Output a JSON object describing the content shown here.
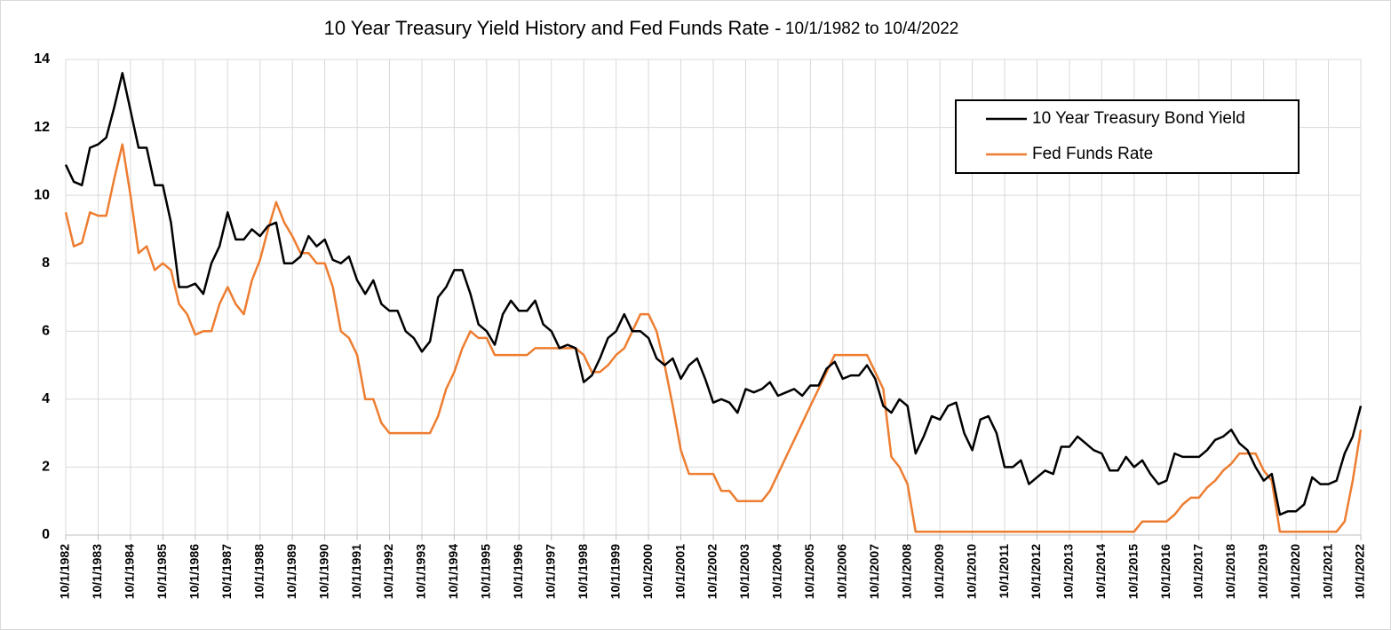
{
  "chart_data": {
    "type": "line",
    "title": "10 Year Treasury Yield History and Fed Funds Rate -",
    "subtitle": "10/1/1982 to 10/4/2022",
    "x": [
      "10/1/1982",
      "1/1/1983",
      "4/1/1983",
      "7/1/1983",
      "10/1/1983",
      "1/1/1984",
      "4/1/1984",
      "7/1/1984",
      "10/1/1984",
      "1/1/1985",
      "4/1/1985",
      "7/1/1985",
      "10/1/1985",
      "1/1/1986",
      "4/1/1986",
      "7/1/1986",
      "10/1/1986",
      "1/1/1987",
      "4/1/1987",
      "7/1/1987",
      "10/1/1987",
      "1/1/1988",
      "4/1/1988",
      "7/1/1988",
      "10/1/1988",
      "1/1/1989",
      "4/1/1989",
      "7/1/1989",
      "10/1/1989",
      "1/1/1990",
      "4/1/1990",
      "7/1/1990",
      "10/1/1990",
      "1/1/1991",
      "4/1/1991",
      "7/1/1991",
      "10/1/1991",
      "1/1/1992",
      "4/1/1992",
      "7/1/1992",
      "10/1/1992",
      "1/1/1993",
      "4/1/1993",
      "7/1/1993",
      "10/1/1993",
      "1/1/1994",
      "4/1/1994",
      "7/1/1994",
      "10/1/1994",
      "1/1/1995",
      "4/1/1995",
      "7/1/1995",
      "10/1/1995",
      "1/1/1996",
      "4/1/1996",
      "7/1/1996",
      "10/1/1996",
      "1/1/1997",
      "4/1/1997",
      "7/1/1997",
      "10/1/1997",
      "1/1/1998",
      "4/1/1998",
      "7/1/1998",
      "10/1/1998",
      "1/1/1999",
      "4/1/1999",
      "7/1/1999",
      "10/1/1999",
      "1/1/2000",
      "4/1/2000",
      "7/1/2000",
      "10/1/2000",
      "1/1/2001",
      "4/1/2001",
      "7/1/2001",
      "10/1/2001",
      "1/1/2002",
      "4/1/2002",
      "7/1/2002",
      "10/1/2002",
      "1/1/2003",
      "4/1/2003",
      "7/1/2003",
      "10/1/2003",
      "1/1/2004",
      "4/1/2004",
      "7/1/2004",
      "10/1/2004",
      "1/1/2005",
      "4/1/2005",
      "7/1/2005",
      "10/1/2005",
      "1/1/2006",
      "4/1/2006",
      "7/1/2006",
      "10/1/2006",
      "1/1/2007",
      "4/1/2007",
      "7/1/2007",
      "10/1/2007",
      "1/1/2008",
      "4/1/2008",
      "7/1/2008",
      "10/1/2008",
      "1/1/2009",
      "4/1/2009",
      "7/1/2009",
      "10/1/2009",
      "1/1/2010",
      "4/1/2010",
      "7/1/2010",
      "10/1/2010",
      "1/1/2011",
      "4/1/2011",
      "7/1/2011",
      "10/1/2011",
      "1/1/2012",
      "4/1/2012",
      "7/1/2012",
      "10/1/2012",
      "1/1/2013",
      "4/1/2013",
      "7/1/2013",
      "10/1/2013",
      "1/1/2014",
      "4/1/2014",
      "7/1/2014",
      "10/1/2014",
      "1/1/2015",
      "4/1/2015",
      "7/1/2015",
      "10/1/2015",
      "1/1/2016",
      "4/1/2016",
      "7/1/2016",
      "10/1/2016",
      "1/1/2017",
      "4/1/2017",
      "7/1/2017",
      "10/1/2017",
      "1/1/2018",
      "4/1/2018",
      "7/1/2018",
      "10/1/2018",
      "1/1/2019",
      "4/1/2019",
      "7/1/2019",
      "10/1/2019",
      "1/1/2020",
      "4/1/2020",
      "7/1/2020",
      "10/1/2020",
      "1/1/2021",
      "4/1/2021",
      "7/1/2021",
      "10/1/2021",
      "1/1/2022",
      "4/1/2022",
      "7/1/2022",
      "10/1/2022"
    ],
    "xticks": [
      "10/1/1982",
      "10/1/1983",
      "10/1/1984",
      "10/1/1985",
      "10/1/1986",
      "10/1/1987",
      "10/1/1988",
      "10/1/1989",
      "10/1/1990",
      "10/1/1991",
      "10/1/1992",
      "10/1/1993",
      "10/1/1994",
      "10/1/1995",
      "10/1/1996",
      "10/1/1997",
      "10/1/1998",
      "10/1/1999",
      "10/1/2000",
      "10/1/2001",
      "10/1/2002",
      "10/1/2003",
      "10/1/2004",
      "10/1/2005",
      "10/1/2006",
      "10/1/2007",
      "10/1/2008",
      "10/1/2009",
      "10/1/2010",
      "10/1/2011",
      "10/1/2012",
      "10/1/2013",
      "10/1/2014",
      "10/1/2015",
      "10/1/2016",
      "10/1/2017",
      "10/1/2018",
      "10/1/2019",
      "10/1/2020",
      "10/1/2021",
      "10/1/2022"
    ],
    "series": [
      {
        "name": "10 Year Treasury Bond Yield",
        "color": "#000000",
        "values": [
          10.9,
          10.4,
          10.3,
          11.4,
          11.5,
          11.7,
          12.6,
          13.6,
          12.5,
          11.4,
          11.4,
          10.3,
          10.3,
          9.2,
          7.3,
          7.3,
          7.4,
          7.1,
          8.0,
          8.5,
          9.5,
          8.7,
          8.7,
          9.0,
          8.8,
          9.1,
          9.2,
          8.0,
          8.0,
          8.2,
          8.8,
          8.5,
          8.7,
          8.1,
          8.0,
          8.2,
          7.5,
          7.1,
          7.5,
          6.8,
          6.6,
          6.6,
          6.0,
          5.8,
          5.4,
          5.7,
          7.0,
          7.3,
          7.8,
          7.8,
          7.1,
          6.2,
          6.0,
          5.6,
          6.5,
          6.9,
          6.6,
          6.6,
          6.9,
          6.2,
          6.0,
          5.5,
          5.6,
          5.5,
          4.5,
          4.7,
          5.2,
          5.8,
          6.0,
          6.5,
          6.0,
          6.0,
          5.8,
          5.2,
          5.0,
          5.2,
          4.6,
          5.0,
          5.2,
          4.6,
          3.9,
          4.0,
          3.9,
          3.6,
          4.3,
          4.2,
          4.3,
          4.5,
          4.1,
          4.2,
          4.3,
          4.1,
          4.4,
          4.4,
          4.9,
          5.1,
          4.6,
          4.7,
          4.7,
          5.0,
          4.6,
          3.8,
          3.6,
          4.0,
          3.8,
          2.4,
          2.9,
          3.5,
          3.4,
          3.8,
          3.9,
          3.0,
          2.5,
          3.4,
          3.5,
          3.0,
          2.0,
          2.0,
          2.2,
          1.5,
          1.7,
          1.9,
          1.8,
          2.6,
          2.6,
          2.9,
          2.7,
          2.5,
          2.4,
          1.9,
          1.9,
          2.3,
          2.0,
          2.2,
          1.8,
          1.5,
          1.6,
          2.4,
          2.3,
          2.3,
          2.3,
          2.5,
          2.8,
          2.9,
          3.1,
          2.7,
          2.5,
          2.0,
          1.6,
          1.8,
          0.6,
          0.7,
          0.7,
          0.9,
          1.7,
          1.5,
          1.5,
          1.6,
          2.4,
          2.9,
          3.8
        ]
      },
      {
        "name": "Fed Funds Rate",
        "color": "#ed7d31",
        "values": [
          9.5,
          8.5,
          8.6,
          9.5,
          9.4,
          9.4,
          10.5,
          11.5,
          10.0,
          8.3,
          8.5,
          7.8,
          8.0,
          7.8,
          6.8,
          6.5,
          5.9,
          6.0,
          6.0,
          6.8,
          7.3,
          6.8,
          6.5,
          7.5,
          8.1,
          9.0,
          9.8,
          9.2,
          8.8,
          8.3,
          8.3,
          8.0,
          8.0,
          7.3,
          6.0,
          5.8,
          5.3,
          4.0,
          4.0,
          3.3,
          3.0,
          3.0,
          3.0,
          3.0,
          3.0,
          3.0,
          3.5,
          4.3,
          4.8,
          5.5,
          6.0,
          5.8,
          5.8,
          5.3,
          5.3,
          5.3,
          5.3,
          5.3,
          5.5,
          5.5,
          5.5,
          5.5,
          5.5,
          5.5,
          5.3,
          4.8,
          4.8,
          5.0,
          5.3,
          5.5,
          6.0,
          6.5,
          6.5,
          6.0,
          5.0,
          3.8,
          2.5,
          1.8,
          1.8,
          1.8,
          1.8,
          1.3,
          1.3,
          1.0,
          1.0,
          1.0,
          1.0,
          1.3,
          1.8,
          2.3,
          2.8,
          3.3,
          3.8,
          4.3,
          4.8,
          5.3,
          5.3,
          5.3,
          5.3,
          5.3,
          4.8,
          4.3,
          2.3,
          2.0,
          1.5,
          0.1,
          0.1,
          0.1,
          0.1,
          0.1,
          0.1,
          0.1,
          0.1,
          0.1,
          0.1,
          0.1,
          0.1,
          0.1,
          0.1,
          0.1,
          0.1,
          0.1,
          0.1,
          0.1,
          0.1,
          0.1,
          0.1,
          0.1,
          0.1,
          0.1,
          0.1,
          0.1,
          0.1,
          0.4,
          0.4,
          0.4,
          0.4,
          0.6,
          0.9,
          1.1,
          1.1,
          1.4,
          1.6,
          1.9,
          2.1,
          2.4,
          2.4,
          2.4,
          1.9,
          1.6,
          0.1,
          0.1,
          0.1,
          0.1,
          0.1,
          0.1,
          0.1,
          0.1,
          0.4,
          1.6,
          3.1
        ]
      }
    ],
    "ylim": [
      0,
      14
    ],
    "yticks": [
      0,
      2,
      4,
      6,
      8,
      10,
      12,
      14
    ],
    "grid": true,
    "legend": "upper right"
  }
}
